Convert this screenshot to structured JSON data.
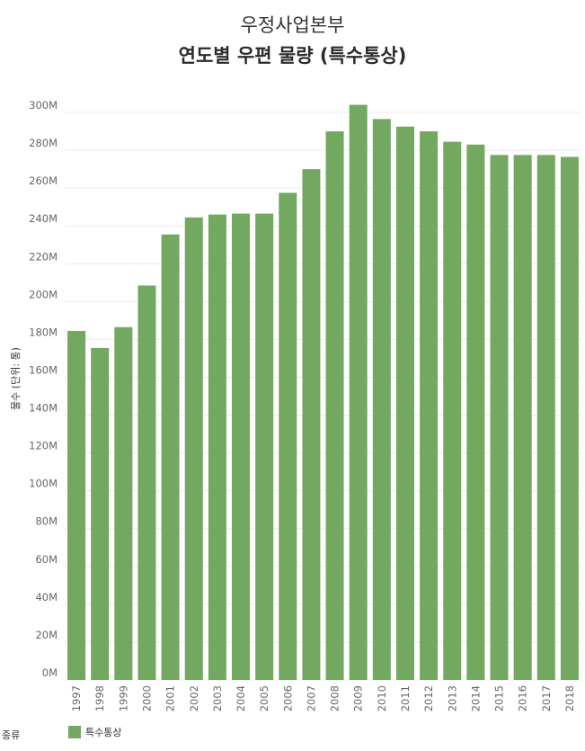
{
  "header": {
    "subtitle": "우정사업본부",
    "title": "연도별 우편 물량 (특수통상)"
  },
  "legend": {
    "title": "종류",
    "items": [
      "특수통상"
    ]
  },
  "colors": {
    "bar": "#72a85f",
    "grid": "#ebebeb"
  },
  "chart_data": {
    "type": "bar",
    "ylabel": "물수 (단위: 통)",
    "categories": [
      "1997",
      "1998",
      "1999",
      "2000",
      "2001",
      "2002",
      "2003",
      "2004",
      "2005",
      "2006",
      "2007",
      "2008",
      "2009",
      "2010",
      "2011",
      "2012",
      "2013",
      "2014",
      "2015",
      "2016",
      "2017",
      "2018"
    ],
    "series": [
      {
        "name": "특수통상",
        "values": [
          184.5,
          175.5,
          186.5,
          208.5,
          235.5,
          244.5,
          246,
          246.5,
          246.5,
          257.5,
          270,
          290,
          304,
          296.5,
          292.5,
          290,
          284.5,
          283,
          277.5,
          277.5,
          277.5,
          276.5
        ]
      }
    ],
    "ylim": [
      0,
      300
    ],
    "yticks": [
      0,
      20,
      40,
      60,
      80,
      100,
      120,
      140,
      160,
      180,
      200,
      220,
      240,
      260,
      280,
      300
    ],
    "ytick_labels": [
      "0M",
      "20M",
      "40M",
      "60M",
      "80M",
      "100M",
      "120M",
      "140M",
      "160M",
      "180M",
      "200M",
      "220M",
      "240M",
      "260M",
      "280M",
      "300M"
    ],
    "grid": true,
    "legend_position": "bottom-left"
  }
}
